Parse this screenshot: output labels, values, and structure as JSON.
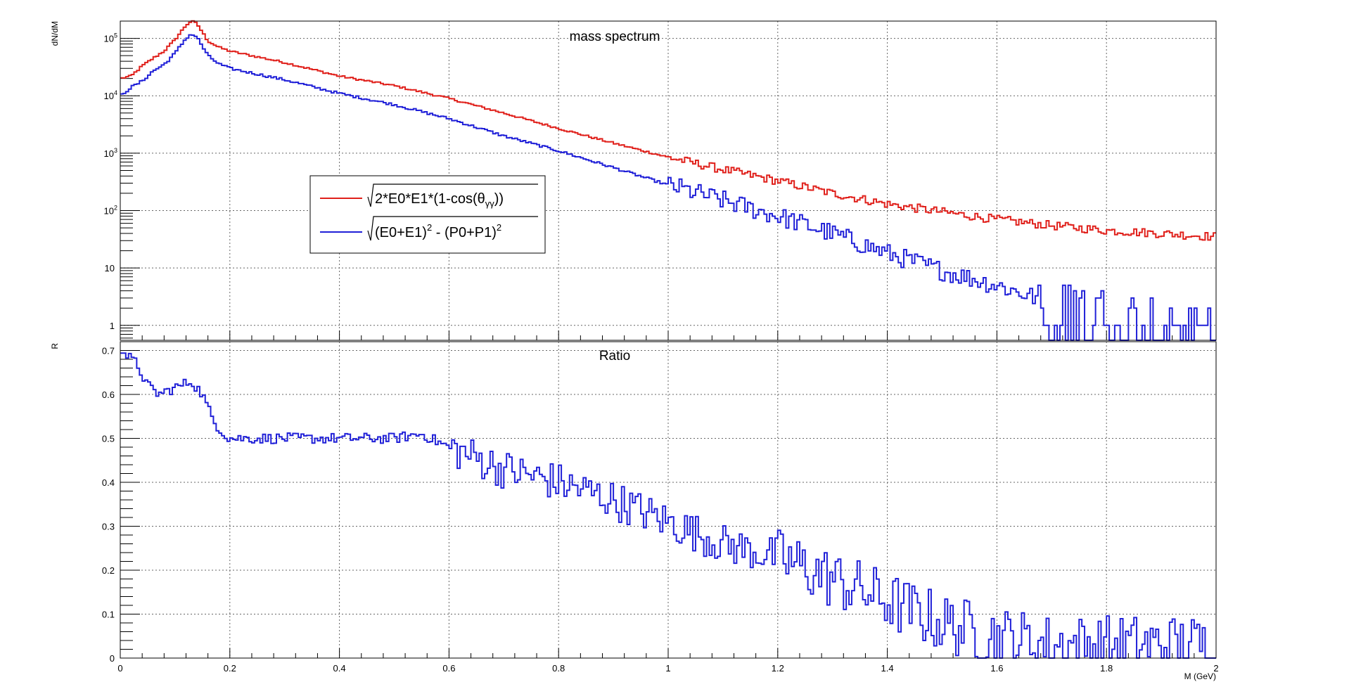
{
  "chart_data": [
    {
      "type": "line",
      "title": "mass spectrum",
      "xlabel": "",
      "ylabel": "dN/dM",
      "xlim": [
        0,
        2
      ],
      "ylim": [
        0.55,
        200000
      ],
      "log_y": true,
      "grid": true,
      "legend_position": "center-left",
      "x_ticks": [
        "0",
        "0.2",
        "0.4",
        "0.6",
        "0.8",
        "1",
        "1.2",
        "1.4",
        "1.6",
        "1.8",
        "2"
      ],
      "y_ticks": [
        {
          "value": 1,
          "label": "1"
        },
        {
          "value": 10,
          "label": "10"
        },
        {
          "value": 100,
          "label": "10",
          "sup": "2"
        },
        {
          "value": 1000,
          "label": "10",
          "sup": "3"
        },
        {
          "value": 10000,
          "label": "10",
          "sup": "4"
        },
        {
          "value": 100000,
          "label": "10",
          "sup": "5"
        }
      ],
      "series": [
        {
          "name": "√2*E0*E1*(1-cos(θγγ))",
          "legend_main": "2*E0*E1*(1-cos(θ",
          "legend_sub": "γγ",
          "legend_tail": "))",
          "color": "#e0201b",
          "x": [
            0.0,
            0.02,
            0.04,
            0.06,
            0.08,
            0.1,
            0.12,
            0.13,
            0.14,
            0.16,
            0.18,
            0.2,
            0.3,
            0.4,
            0.5,
            0.6,
            0.7,
            0.8,
            0.9,
            1.0,
            1.1,
            1.2,
            1.3,
            1.4,
            1.5,
            1.6,
            1.7,
            1.8,
            1.9,
            2.0
          ],
          "y": [
            20000,
            22000,
            33000,
            45000,
            60000,
            95000,
            170000,
            200000,
            180000,
            90000,
            70000,
            60000,
            38000,
            22000,
            15000,
            9000,
            5000,
            2700,
            1500,
            850,
            520,
            330,
            200,
            130,
            95,
            70,
            55,
            45,
            40,
            35
          ]
        },
        {
          "name": "√(E0+E1)²-(P0+P1)²",
          "legend_main": "(E0+E1)",
          "legend_sup1": "2",
          "legend_mid": " - (P0+P1)",
          "legend_sup2": "2",
          "color": "#2020d8",
          "x": [
            0.0,
            0.02,
            0.04,
            0.06,
            0.08,
            0.1,
            0.12,
            0.13,
            0.14,
            0.16,
            0.18,
            0.2,
            0.3,
            0.4,
            0.5,
            0.6,
            0.7,
            0.8,
            0.9,
            1.0,
            1.1,
            1.2,
            1.3,
            1.4,
            1.5,
            1.6,
            1.7,
            1.8,
            1.9,
            2.0
          ],
          "y": [
            10000,
            14000,
            18000,
            27000,
            35000,
            55000,
            100000,
            120000,
            105000,
            50000,
            36000,
            30000,
            19000,
            11000,
            7000,
            4000,
            2000,
            1100,
            560,
            280,
            150,
            80,
            40,
            18,
            9,
            5,
            2.5,
            1.5,
            1,
            0.8
          ]
        }
      ]
    },
    {
      "type": "line",
      "title": "Ratio",
      "xlabel": "M (GeV)",
      "ylabel": "R",
      "xlim": [
        0,
        2
      ],
      "ylim": [
        0,
        0.72
      ],
      "grid": true,
      "x_ticks": [
        "0",
        "0.2",
        "0.4",
        "0.6",
        "0.8",
        "1",
        "1.2",
        "1.4",
        "1.6",
        "1.8",
        "2"
      ],
      "y_ticks": [
        {
          "value": 0,
          "label": "0"
        },
        {
          "value": 0.1,
          "label": "0.1"
        },
        {
          "value": 0.2,
          "label": "0.2"
        },
        {
          "value": 0.3,
          "label": "0.3"
        },
        {
          "value": 0.4,
          "label": "0.4"
        },
        {
          "value": 0.5,
          "label": "0.5"
        },
        {
          "value": 0.6,
          "label": "0.6"
        },
        {
          "value": 0.7,
          "label": "0.7"
        }
      ],
      "series": [
        {
          "color": "#2020d8",
          "x": [
            0.0,
            0.01,
            0.03,
            0.05,
            0.07,
            0.09,
            0.11,
            0.13,
            0.15,
            0.17,
            0.19,
            0.2,
            0.3,
            0.4,
            0.5,
            0.55,
            0.6,
            0.7,
            0.8,
            0.9,
            1.0,
            1.1,
            1.2,
            1.3,
            1.4,
            1.5,
            1.6,
            1.7,
            1.8,
            1.9,
            2.0
          ],
          "y": [
            0.71,
            0.69,
            0.67,
            0.62,
            0.6,
            0.61,
            0.62,
            0.63,
            0.6,
            0.54,
            0.51,
            0.5,
            0.5,
            0.5,
            0.5,
            0.51,
            0.48,
            0.43,
            0.4,
            0.36,
            0.31,
            0.26,
            0.23,
            0.18,
            0.13,
            0.08,
            0.05,
            0.03,
            0.03,
            0.03,
            0.03
          ]
        }
      ]
    }
  ]
}
